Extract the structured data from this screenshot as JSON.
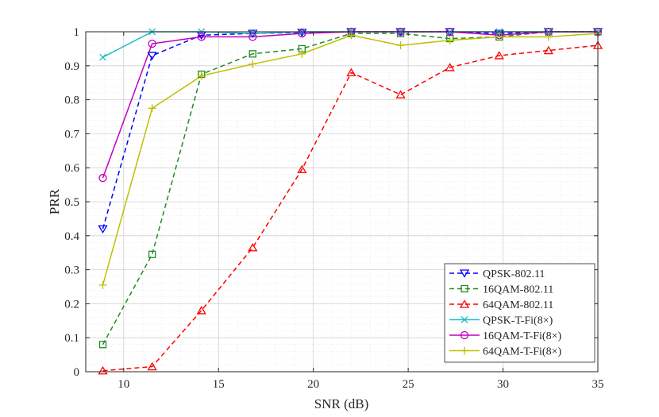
{
  "chart_data": {
    "type": "line",
    "title": "",
    "xlabel": "SNR (dB)",
    "ylabel": "PRR",
    "xlim": [
      8,
      35
    ],
    "ylim": [
      0,
      1
    ],
    "xticks": [
      10,
      15,
      20,
      25,
      30,
      35
    ],
    "yticks": [
      0,
      0.1,
      0.2,
      0.3,
      0.4,
      0.5,
      0.6,
      0.7,
      0.8,
      0.9,
      1
    ],
    "xtick_labels": [
      "10",
      "15",
      "20",
      "25",
      "30",
      "35"
    ],
    "ytick_labels": [
      "0",
      "0.1",
      "0.2",
      "0.3",
      "0.4",
      "0.5",
      "0.6",
      "0.7",
      "0.8",
      "0.9",
      "1"
    ],
    "grid": true,
    "legend_position": "bottom-right",
    "x": [
      8.9,
      11.5,
      14.1,
      16.8,
      19.4,
      22.0,
      24.6,
      27.2,
      29.8,
      32.4,
      35.0
    ],
    "series": [
      {
        "name": "QPSK-802.11",
        "color": "#0000ff",
        "dash": "dashed",
        "marker": "triangle-down",
        "values": [
          0.42,
          0.93,
          0.99,
          0.995,
          0.998,
          1.0,
          1.0,
          1.0,
          0.995,
          1.0,
          1.0
        ]
      },
      {
        "name": "16QAM-802.11",
        "color": "#228b22",
        "dash": "dashed",
        "marker": "square",
        "values": [
          0.08,
          0.345,
          0.875,
          0.935,
          0.95,
          0.995,
          0.995,
          0.98,
          0.985,
          1.0,
          1.0
        ]
      },
      {
        "name": "64QAM-802.11",
        "color": "#ff0000",
        "dash": "dashed",
        "marker": "triangle-up",
        "values": [
          0.003,
          0.015,
          0.18,
          0.365,
          0.595,
          0.88,
          0.815,
          0.895,
          0.93,
          0.945,
          0.96
        ]
      },
      {
        "name": "QPSK-T-Fi(8×)",
        "color": "#1fbfbf",
        "dash": "solid",
        "marker": "x",
        "values": [
          0.925,
          1.0,
          1.0,
          0.995,
          1.0,
          1.0,
          1.0,
          1.0,
          1.0,
          1.0,
          1.0
        ]
      },
      {
        "name": "16QAM-T-Fi(8×)",
        "color": "#bf00bf",
        "dash": "solid",
        "marker": "circle",
        "values": [
          0.57,
          0.965,
          0.985,
          0.985,
          0.995,
          1.0,
          1.0,
          1.0,
          0.99,
          1.0,
          1.0
        ]
      },
      {
        "name": "64QAM-T-Fi(8×)",
        "color": "#bfbf00",
        "dash": "solid",
        "marker": "plus",
        "values": [
          0.255,
          0.775,
          0.87,
          0.905,
          0.935,
          0.99,
          0.96,
          0.975,
          0.985,
          0.985,
          0.995
        ]
      }
    ]
  }
}
